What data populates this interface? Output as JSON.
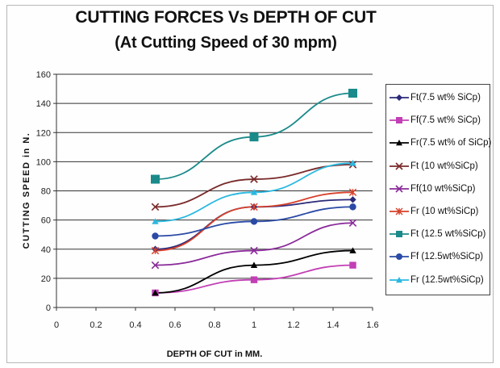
{
  "chart_data": {
    "type": "line",
    "title": "CUTTING FORCES Vs DEPTH OF CUT",
    "subtitle": "(At Cutting Speed of 30 mpm)",
    "xlabel": "DEPTH OF CUT in MM.",
    "ylabel": "CUTTING SPEED in N.",
    "xlim": [
      0,
      1.6
    ],
    "ylim": [
      0,
      160
    ],
    "x_ticks": [
      "0",
      "0.2",
      "0.4",
      "0.6",
      "0.8",
      "1",
      "1.2",
      "1.4",
      "1.6"
    ],
    "y_ticks": [
      "0",
      "20",
      "40",
      "60",
      "80",
      "100",
      "120",
      "140",
      "160"
    ],
    "grid": "horizontal",
    "legend_position": "right",
    "x": [
      0.5,
      1.0,
      1.5
    ],
    "series": [
      {
        "name": "Ft(7.5 wt% SiCp)",
        "values": [
          40,
          69,
          74
        ],
        "color": "#2b2a7a",
        "marker": "diamond"
      },
      {
        "name": "Ff(7.5 wt% SiCp)",
        "values": [
          10,
          19,
          29
        ],
        "color": "#c23fb5",
        "marker": "square"
      },
      {
        "name": "Fr(7.5 wt% of SiCp)",
        "values": [
          10,
          29,
          39
        ],
        "color": "#000000",
        "marker": "triangle"
      },
      {
        "name": "Ft (10 wt%SiCp)",
        "values": [
          69,
          88,
          98
        ],
        "color": "#7a2a2a",
        "marker": "x"
      },
      {
        "name": "Ff(10 wt%SiCp)",
        "values": [
          29,
          39,
          58
        ],
        "color": "#8a2a9a",
        "marker": "x"
      },
      {
        "name": "Fr (10 wt%SiCp)",
        "values": [
          39,
          69,
          79
        ],
        "color": "#d6402a",
        "marker": "star"
      },
      {
        "name": "Ft (12.5 wt%SiCp)",
        "values": [
          88,
          117,
          147
        ],
        "color": "#1a8a8a",
        "marker": "square"
      },
      {
        "name": "Ff (12.5wt%SiCp)",
        "values": [
          49,
          59,
          69
        ],
        "color": "#2a4aa5",
        "marker": "circle"
      },
      {
        "name": "Fr (12.5wt%SiCp)",
        "values": [
          59,
          79,
          99
        ],
        "color": "#2ab8e0",
        "marker": "triangle"
      }
    ]
  }
}
